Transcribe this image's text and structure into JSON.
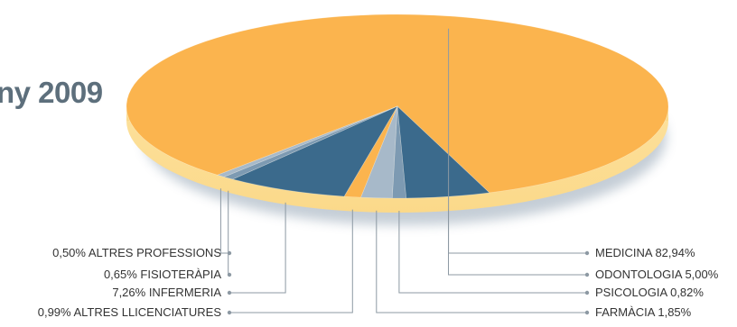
{
  "header": {
    "title": "ny 2009"
  },
  "chart_data": {
    "type": "pie",
    "title": "ny 2009",
    "slices": [
      {
        "label": "MEDICINA",
        "value": 82.94,
        "display": "82,94%",
        "color": "#fbb44e",
        "side": "right"
      },
      {
        "label": "ODONTOLOGIA",
        "value": 5.0,
        "display": "5,00%",
        "color": "#3b6a8c",
        "side": "right"
      },
      {
        "label": "PSICOLOGIA",
        "value": 0.82,
        "display": "0,82%",
        "color": "#7d9ab2",
        "side": "right"
      },
      {
        "label": "FARMÀCIA",
        "value": 1.85,
        "display": "1,85%",
        "color": "#a7b9c9",
        "side": "right"
      },
      {
        "label": "ALTRES LLICENCIATURES",
        "value": 0.99,
        "display": "0,99%",
        "color": "#fbb44e",
        "side": "left"
      },
      {
        "label": "INFERMERIA",
        "value": 7.26,
        "display": "7,26%",
        "color": "#3b6a8c",
        "side": "left"
      },
      {
        "label": "FISIOTERÀPIA",
        "value": 0.65,
        "display": "0,65%",
        "color": "#7d9ab2",
        "side": "left"
      },
      {
        "label": "ALTRES PROFESSIONS",
        "value": 0.5,
        "display": "0,50%",
        "color": "#a7b9c9",
        "side": "left"
      }
    ],
    "legend": "callout-labels",
    "colors": {
      "primary": "#fbb44e",
      "secondary": "#3b6a8c",
      "edge": "#fce3a6"
    }
  }
}
